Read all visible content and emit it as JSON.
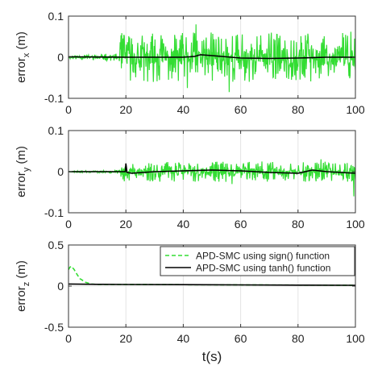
{
  "chart_data": [
    {
      "type": "line",
      "ylabel": "error",
      "ylabel_sub": "x",
      "ylabel_unit": " (m)",
      "xlim": [
        0,
        100
      ],
      "ylim": [
        -0.1,
        0.1
      ],
      "xticks": [
        0,
        20,
        40,
        60,
        80,
        100
      ],
      "yticks": [
        -0.1,
        0,
        0.1
      ],
      "ytick_labels": [
        "-0.1",
        "0",
        "0.1"
      ],
      "grid": true,
      "series": [
        {
          "name": "APD-SMC using sign() function",
          "color": "#33dd33",
          "style": "dashdot",
          "noise": {
            "base_amp": 0.01,
            "peak_amp": 0.06,
            "start": 18,
            "seed": 11
          },
          "extremes": [
            [
              44.5,
              0.08
            ],
            [
              56,
              -0.085
            ],
            [
              98.5,
              0.062
            ],
            [
              41.5,
              -0.075
            ]
          ]
        },
        {
          "name": "APD-SMC using tanh() function",
          "color": "#000000",
          "style": "solid",
          "x": [
            0,
            20,
            30,
            40,
            44,
            46,
            50,
            60,
            70,
            80,
            90,
            100
          ],
          "y": [
            0.001,
            0.0,
            0.0,
            0.0,
            0.002,
            0.006,
            0.004,
            -0.002,
            -0.003,
            -0.002,
            0.0,
            0.0
          ]
        }
      ]
    },
    {
      "type": "line",
      "ylabel": "error",
      "ylabel_sub": "y",
      "ylabel_unit": " (m)",
      "xlim": [
        0,
        100
      ],
      "ylim": [
        -0.1,
        0.1
      ],
      "xticks": [
        0,
        20,
        40,
        60,
        80,
        100
      ],
      "yticks": [
        -0.1,
        0,
        0.1
      ],
      "ytick_labels": [
        "-0.1",
        "0",
        "0.1"
      ],
      "grid": true,
      "series": [
        {
          "name": "APD-SMC using sign() function",
          "color": "#33dd33",
          "style": "dashdot",
          "noise": {
            "base_amp": 0.004,
            "peak_amp": 0.025,
            "start": 18,
            "seed": 23
          },
          "extremes": [
            [
              99.5,
              -0.06
            ],
            [
              88,
              0.03
            ],
            [
              57,
              -0.03
            ]
          ]
        },
        {
          "name": "APD-SMC using tanh() function",
          "color": "#000000",
          "style": "solid",
          "x": [
            0,
            19.8,
            20,
            20.4,
            22,
            30,
            40,
            50,
            60,
            70,
            80,
            85,
            90,
            95,
            100
          ],
          "y": [
            0.0,
            0.0,
            0.02,
            -0.002,
            -0.004,
            0.0,
            0.002,
            0.004,
            0.002,
            -0.002,
            -0.004,
            0.004,
            0.0,
            -0.002,
            -0.004
          ]
        }
      ]
    },
    {
      "type": "line",
      "ylabel": "error",
      "ylabel_sub": "z",
      "ylabel_unit": " (m)",
      "xlabel": "t(s)",
      "xlim": [
        0,
        100
      ],
      "ylim": [
        -0.5,
        0.5
      ],
      "xticks": [
        0,
        20,
        40,
        60,
        80,
        100
      ],
      "yticks": [
        -0.5,
        0,
        0.5
      ],
      "ytick_labels": [
        "-0.5",
        "0",
        "0.5"
      ],
      "grid": true,
      "legend": "top-right",
      "series": [
        {
          "name": "APD-SMC using sign() function",
          "color": "#33dd33",
          "style": "dashed",
          "x": [
            0,
            0.5,
            1,
            2,
            3,
            4,
            6,
            8,
            10,
            15,
            20,
            100
          ],
          "y": [
            0.2,
            0.23,
            0.24,
            0.2,
            0.14,
            0.09,
            0.045,
            0.025,
            0.02,
            0.02,
            0.02,
            0.01
          ]
        },
        {
          "name": "APD-SMC using tanh() function",
          "color": "#000000",
          "style": "solid",
          "x": [
            0,
            10,
            20,
            40,
            60,
            80,
            100
          ],
          "y": [
            0.025,
            0.022,
            0.02,
            0.018,
            0.015,
            0.012,
            0.01
          ]
        }
      ]
    }
  ]
}
